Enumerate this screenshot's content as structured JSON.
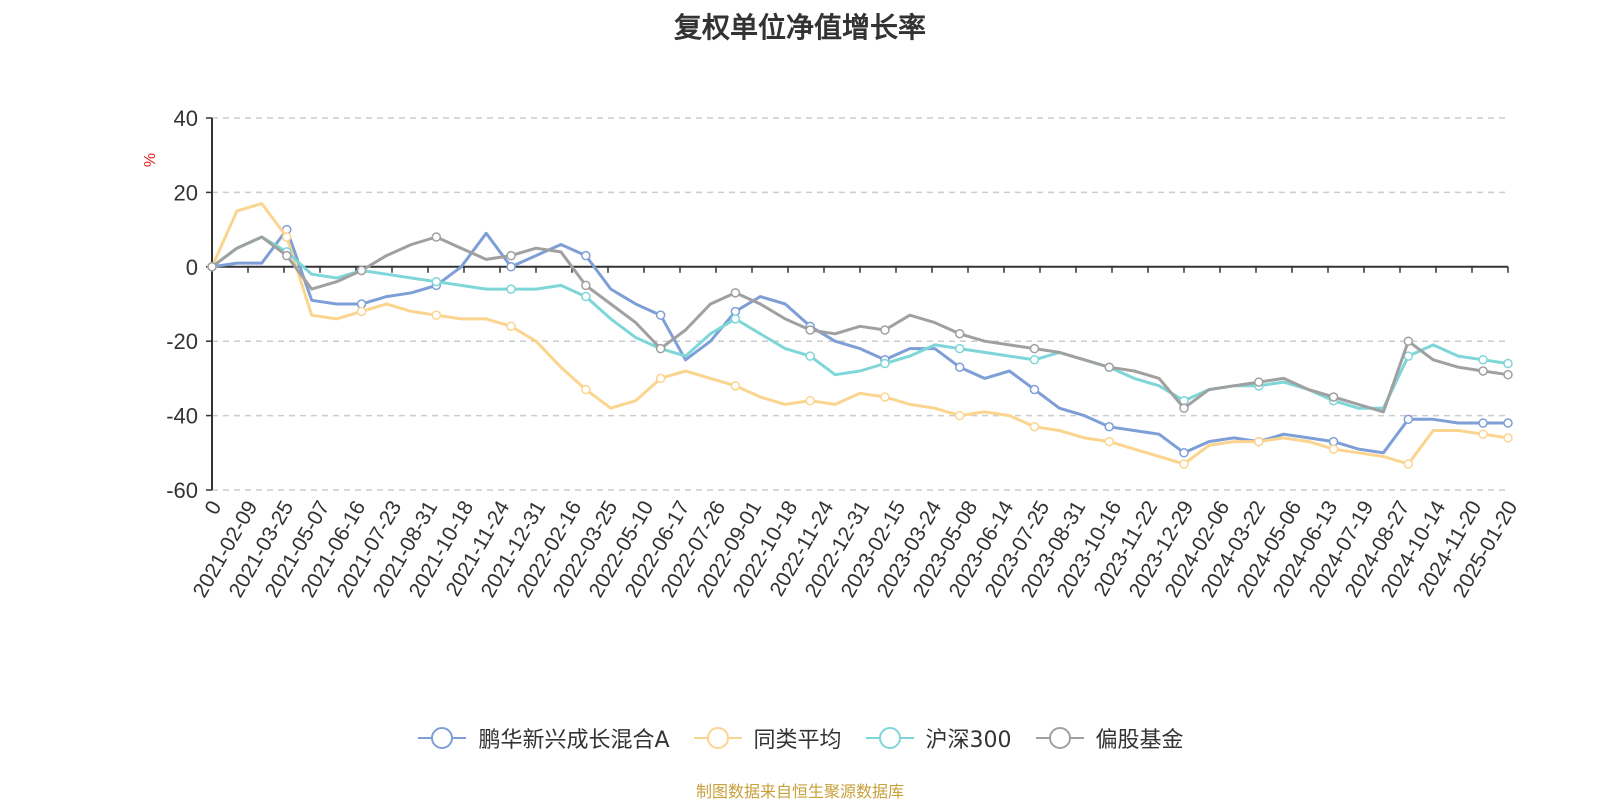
{
  "title": "复权单位净值增长率",
  "source": "制图数据来自恒生聚源数据库",
  "colors": {
    "source_text": "#c8a03a",
    "y_unit": "#e02020",
    "axis": "#333333",
    "grid": "#cccccc",
    "tick_text": "#333333"
  },
  "chart_data": {
    "type": "line",
    "title": "复权单位净值增长率",
    "ylabel": "%",
    "ylim": [
      -60,
      40
    ],
    "yticks": [
      "40",
      "20",
      "0",
      "-20",
      "-40",
      "-60"
    ],
    "ytick_values": [
      40,
      20,
      0,
      -20,
      -40,
      -60
    ],
    "grid": true,
    "legend_position": "bottom-center",
    "x_ticks": [
      "0",
      "2021-02-09",
      "2021-03-25",
      "2021-05-07",
      "2021-06-16",
      "2021-07-23",
      "2021-08-31",
      "2021-10-18",
      "2021-11-24",
      "2021-12-31",
      "2022-02-16",
      "2022-03-25",
      "2022-05-10",
      "2022-06-17",
      "2022-07-26",
      "2022-09-01",
      "2022-10-18",
      "2022-11-24",
      "2022-12-31",
      "2023-02-15",
      "2023-03-24",
      "2023-05-08",
      "2023-06-14",
      "2023-07-25",
      "2023-08-31",
      "2023-10-16",
      "2023-11-22",
      "2023-12-29",
      "2024-02-06",
      "2024-03-22",
      "2024-05-06",
      "2024-06-13",
      "2024-07-19",
      "2024-08-27",
      "2024-10-14",
      "2024-11-20",
      "2025-01-20"
    ],
    "series": [
      {
        "name": "鹏华新兴成长混合A",
        "color": "#7e9fd6",
        "values": [
          0,
          1,
          1,
          10,
          -9,
          -10,
          -10,
          -8,
          -7,
          -5,
          0,
          9,
          0,
          3,
          6,
          3,
          -6,
          -10,
          -13,
          -25,
          -20,
          -12,
          -8,
          -10,
          -16,
          -20,
          -22,
          -25,
          -22,
          -22,
          -27,
          -30,
          -28,
          -33,
          -38,
          -40,
          -43,
          -44,
          -45,
          -50,
          -47,
          -46,
          -47,
          -45,
          -46,
          -47,
          -49,
          -50,
          -41,
          -41,
          -42,
          -42,
          -42
        ]
      },
      {
        "name": "同类平均",
        "color": "#fbd58f",
        "values": [
          0,
          15,
          17,
          8,
          -13,
          -14,
          -12,
          -10,
          -12,
          -13,
          -14,
          -14,
          -16,
          -20,
          -27,
          -33,
          -38,
          -36,
          -30,
          -28,
          -30,
          -32,
          -35,
          -37,
          -36,
          -37,
          -34,
          -35,
          -37,
          -38,
          -40,
          -39,
          -40,
          -43,
          -44,
          -46,
          -47,
          -49,
          -51,
          -53,
          -48,
          -47,
          -47,
          -46,
          -47,
          -49,
          -50,
          -51,
          -53,
          -44,
          -44,
          -45,
          -46
        ]
      },
      {
        "name": "沪深300",
        "color": "#7fd6d8",
        "values": [
          0,
          5,
          8,
          4,
          -2,
          -3,
          -1,
          -2,
          -3,
          -4,
          -5,
          -6,
          -6,
          -6,
          -5,
          -8,
          -14,
          -19,
          -22,
          -24,
          -18,
          -14,
          -18,
          -22,
          -24,
          -29,
          -28,
          -26,
          -24,
          -21,
          -22,
          -23,
          -24,
          -25,
          -23,
          -25,
          -27,
          -30,
          -32,
          -36,
          -33,
          -32,
          -32,
          -31,
          -33,
          -36,
          -38,
          -38,
          -24,
          -21,
          -24,
          -25,
          -26
        ]
      },
      {
        "name": "偏股基金",
        "color": "#a0a0a0",
        "values": [
          0,
          5,
          8,
          3,
          -6,
          -4,
          -1,
          3,
          6,
          8,
          5,
          2,
          3,
          5,
          4,
          -5,
          -10,
          -15,
          -22,
          -17,
          -10,
          -7,
          -10,
          -14,
          -17,
          -18,
          -16,
          -17,
          -13,
          -15,
          -18,
          -20,
          -21,
          -22,
          -23,
          -25,
          -27,
          -28,
          -30,
          -38,
          -33,
          -32,
          -31,
          -30,
          -33,
          -35,
          -37,
          -39,
          -20,
          -25,
          -27,
          -28,
          -29
        ]
      }
    ]
  },
  "legend": [
    {
      "label": "鹏华新兴成长混合A",
      "color": "#7e9fd6"
    },
    {
      "label": "同类平均",
      "color": "#fbd58f"
    },
    {
      "label": "沪深300",
      "color": "#7fd6d8"
    },
    {
      "label": "偏股基金",
      "color": "#a0a0a0"
    }
  ]
}
